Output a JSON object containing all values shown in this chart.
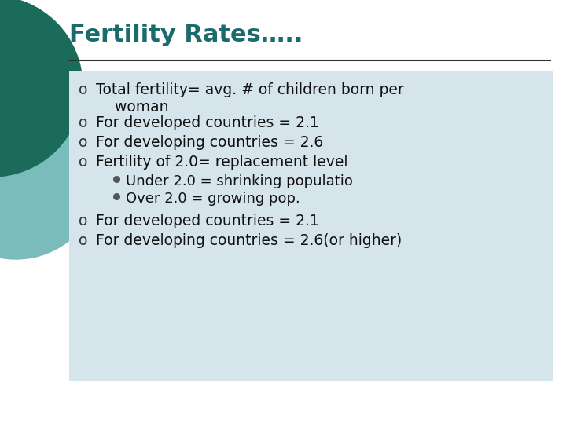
{
  "title": "Fertility Rates…..",
  "title_color": "#1a6b6b",
  "title_fontsize": 22,
  "title_fontweight": "bold",
  "bg_color": "#ffffff",
  "content_bg_color": "#d6e4ec",
  "bullet_color": "#333333",
  "bullet_fontsize": 13.5,
  "sub_bullet_fontsize": 13,
  "left_circle_dark": "#1a6b5a",
  "left_circle_light": "#7abcbc",
  "separator_color": "#333333",
  "bullets": [
    {
      "text": "Total fertility= avg. # of children born per\n    woman",
      "indent": 0
    },
    {
      "text": "For developed countries = 2.1",
      "indent": 0
    },
    {
      "text": "For developing countries = 2.6",
      "indent": 0
    },
    {
      "text": "Fertility of 2.0= replacement level",
      "indent": 0
    },
    {
      "text": "Under 2.0 = shrinking populatio",
      "indent": 1
    },
    {
      "text": "Over 2.0 = growing pop.",
      "indent": 1
    },
    {
      "text": "For developed countries = 2.1",
      "indent": 0
    },
    {
      "text": "For developing countries = 2.6(or higher)",
      "indent": 0
    }
  ],
  "fig_width": 7.2,
  "fig_height": 5.4,
  "dpi": 100
}
